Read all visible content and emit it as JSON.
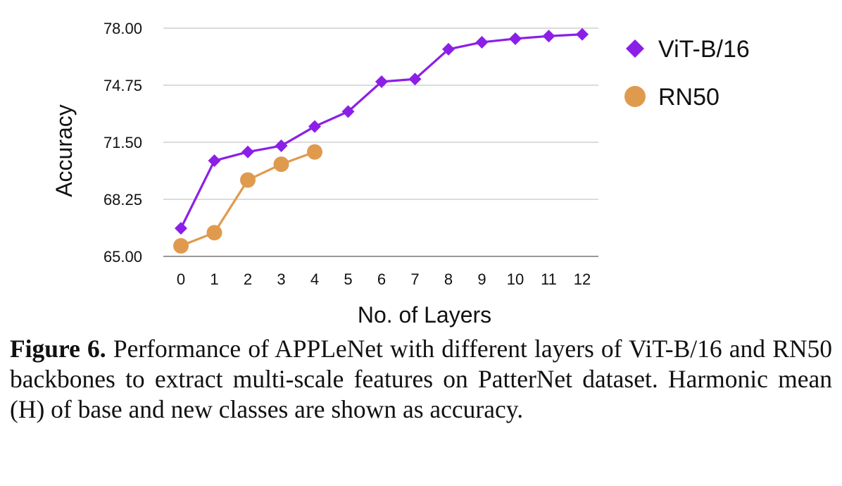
{
  "chart_data": {
    "type": "line",
    "xlabel": "No. of Layers",
    "ylabel": "Accuracy",
    "ylim": [
      65.0,
      78.0
    ],
    "y_ticks": [
      "65.00",
      "68.25",
      "71.50",
      "74.75",
      "78.00"
    ],
    "x_ticks": [
      "0",
      "1",
      "2",
      "3",
      "4",
      "5",
      "6",
      "7",
      "8",
      "9",
      "10",
      "11",
      "12"
    ],
    "grid": "horizontal",
    "legend_position": "top-right",
    "series": [
      {
        "name": "ViT-B/16",
        "marker": "diamond",
        "color": "#8B1FE8",
        "x": [
          0,
          1,
          2,
          3,
          4,
          5,
          6,
          7,
          8,
          9,
          10,
          11,
          12
        ],
        "values": [
          66.6,
          70.45,
          70.95,
          71.3,
          72.4,
          73.25,
          74.95,
          75.1,
          76.8,
          77.2,
          77.4,
          77.55,
          77.65
        ]
      },
      {
        "name": "RN50",
        "marker": "circle",
        "color": "#E09A4E",
        "x": [
          0,
          1,
          2,
          3,
          4
        ],
        "values": [
          65.6,
          66.35,
          69.35,
          70.25,
          70.95
        ]
      }
    ]
  },
  "caption": {
    "label": "Figure 6.",
    "text": "Performance of APPLeNet with different layers of ViT-B/16 and RN50 backbones to extract multi-scale features on PatterNet dataset.  Harmonic mean (H) of base and new classes are shown as accuracy."
  }
}
